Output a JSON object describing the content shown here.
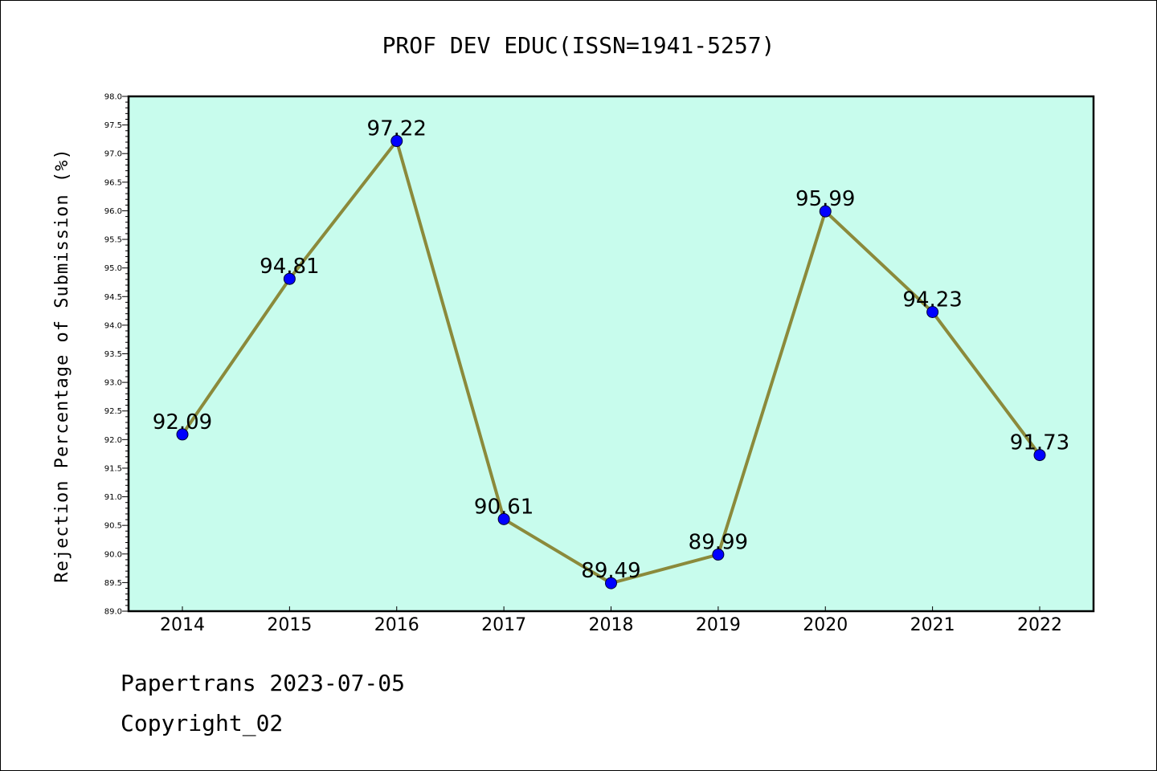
{
  "chart_data": {
    "type": "line",
    "title": "PROF DEV EDUC(ISSN=1941-5257)",
    "ylabel": "Rejection Percentage of Submission (%)",
    "xlabel": "",
    "categories": [
      "2014",
      "2015",
      "2016",
      "2017",
      "2018",
      "2019",
      "2020",
      "2021",
      "2022"
    ],
    "series": [
      {
        "values": [
          92.09,
          94.81,
          97.22,
          90.61,
          89.49,
          89.99,
          95.99,
          94.23,
          91.73
        ],
        "labels": [
          "92.09",
          "94.81",
          "97.22",
          "90.61",
          "89.49",
          "89.99",
          "95.99",
          "94.23",
          "91.73"
        ]
      }
    ],
    "ylim": [
      89.0,
      98.0
    ],
    "ytick_step": 0.5,
    "grid": false,
    "plot_background": "#c8fced",
    "line_color": "#8b8a3b",
    "marker_color": "#0000ff"
  },
  "footer": {
    "line1": "Papertrans 2023-07-05",
    "line2": "Copyright_02"
  }
}
